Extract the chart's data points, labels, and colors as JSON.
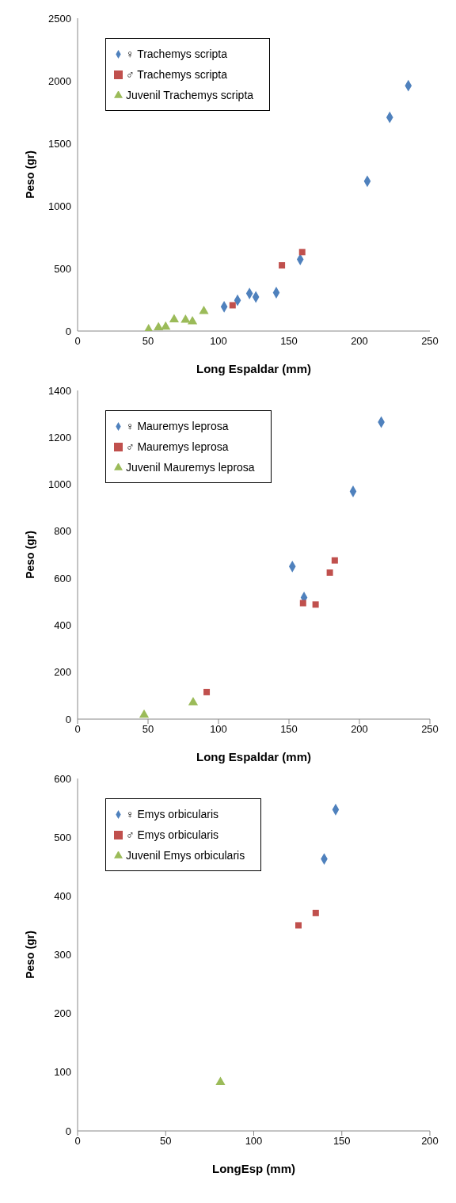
{
  "chart_data": [
    {
      "type": "scatter",
      "ylabel": "Peso (gr)",
      "xlabel": "Long Espaldar (mm)",
      "xlim": [
        0,
        250
      ],
      "xticks": [
        0,
        50,
        100,
        150,
        200,
        250
      ],
      "ylim": [
        0,
        2500
      ],
      "yticks": [
        0,
        500,
        1000,
        1500,
        2000,
        2500
      ],
      "grid": false,
      "legend": "top left",
      "series": [
        {
          "name": "♀ Trachemys scripta",
          "color": "#4f81bd",
          "marker": "diamond",
          "x": [
            104,
            113.5,
            122,
            126.5,
            141,
            158,
            205.6,
            221.5,
            234.7
          ],
          "values": [
            194,
            246,
            300,
            272,
            307,
            572,
            1197,
            1708,
            1961
          ]
        },
        {
          "name": "♂ Trachemys scripta",
          "color": "#c0504d",
          "marker": "square",
          "x": [
            110,
            145,
            159.4
          ],
          "values": [
            206,
            525,
            631
          ]
        },
        {
          "name": "Juvenil Trachemys scripta",
          "color": "#9bbb59",
          "marker": "triangle",
          "x": [
            50.4,
            57.4,
            62.5,
            68.5,
            76.6,
            81.5,
            89.6
          ],
          "values": [
            12,
            28,
            33,
            92,
            88,
            76,
            158
          ]
        }
      ]
    },
    {
      "type": "scatter",
      "ylabel": "Peso (gr)",
      "xlabel": "Long Espaldar (mm)",
      "xlim": [
        0,
        250
      ],
      "xticks": [
        0,
        50,
        100,
        150,
        200,
        250
      ],
      "ylim": [
        0,
        1400
      ],
      "yticks": [
        0,
        200,
        400,
        600,
        800,
        1000,
        1200,
        1400
      ],
      "grid": false,
      "legend": "top left",
      "series": [
        {
          "name": "♀ Mauremys leprosa",
          "color": "#4f81bd",
          "marker": "diamond",
          "x": [
            152.4,
            160.7,
            195.5,
            215.5
          ],
          "values": [
            650,
            518,
            970,
            1265
          ]
        },
        {
          "name": "♂ Mauremys leprosa",
          "color": "#c0504d",
          "marker": "square",
          "x": [
            91.6,
            160,
            168.9,
            179,
            182.5
          ],
          "values": [
            115,
            494,
            488,
            624,
            676
          ]
        },
        {
          "name": "Juvenil Mauremys leprosa",
          "color": "#9bbb59",
          "marker": "triangle",
          "x": [
            47.2,
            82
          ],
          "values": [
            18,
            71
          ]
        }
      ]
    },
    {
      "type": "scatter",
      "ylabel": "Peso (gr)",
      "xlabel": "LongEsp (mm)",
      "xlim": [
        0,
        200
      ],
      "xticks": [
        0,
        50,
        100,
        150,
        200
      ],
      "ylim": [
        0,
        600
      ],
      "yticks": [
        0,
        100,
        200,
        300,
        400,
        500,
        600
      ],
      "grid": false,
      "legend": "top left",
      "series": [
        {
          "name": "♀ Emys orbicularis",
          "color": "#4f81bd",
          "marker": "diamond",
          "x": [
            146.5,
            140
          ],
          "values": [
            547,
            463
          ]
        },
        {
          "name": "♂ Emys orbicularis",
          "color": "#c0504d",
          "marker": "square",
          "x": [
            125.4,
            135.2
          ],
          "values": [
            350,
            371
          ]
        },
        {
          "name": "Juvenil Emys orbicularis",
          "color": "#9bbb59",
          "marker": "triangle",
          "x": [
            81.1
          ],
          "values": [
            83
          ]
        }
      ]
    }
  ]
}
